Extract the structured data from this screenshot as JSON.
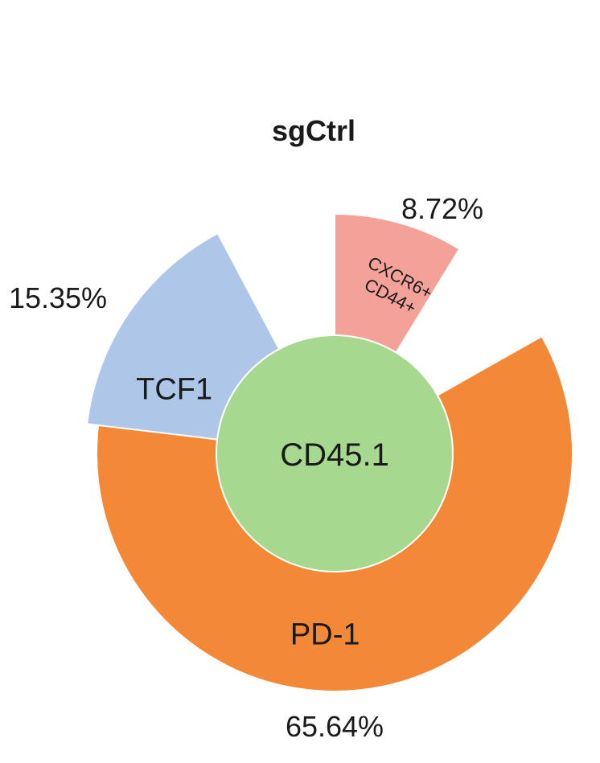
{
  "chart_data": {
    "type": "pie",
    "title": "sgCtrl",
    "center_label": "CD45.1",
    "center_color": "#a6d98f",
    "slices": [
      {
        "label": "PD-1",
        "value": 65.64,
        "value_label": "65.64%",
        "color": "#f38836"
      },
      {
        "label": "TCF1",
        "value": 15.35,
        "value_label": "15.35%",
        "color": "#aec7e8"
      },
      {
        "label": "CXCR6+ CD44+",
        "label_lines": [
          "CXCR6+",
          "CD44+"
        ],
        "value": 8.72,
        "value_label": "8.72%",
        "color": "#f4a19a"
      }
    ]
  }
}
